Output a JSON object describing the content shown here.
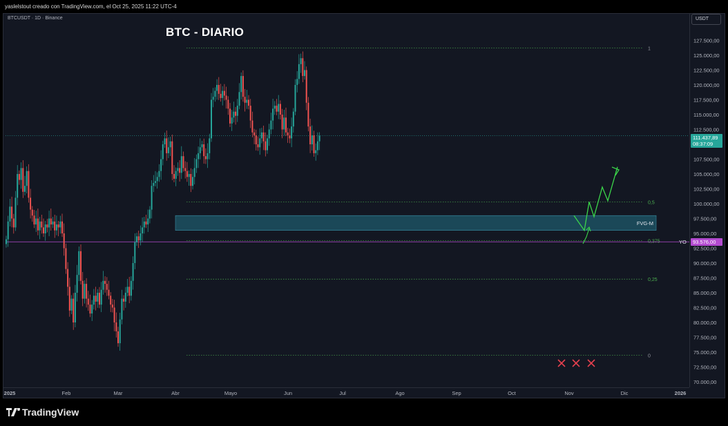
{
  "header": {
    "attribution": "yaslelstout creado con TradingView.com, el Oct 25, 2025 11:22 UTC-4"
  },
  "symbol_line": "BTCUSDT · 1D · Binance",
  "title": "BTC - DIARIO",
  "currency_button": "USDT",
  "footer": {
    "logo_text": "TradingView"
  },
  "colors": {
    "background": "#131722",
    "up": "#26a69a",
    "down": "#ef5350",
    "fvg_zone": "#1f5a6b",
    "yo_line": "#b44bd0",
    "projection": "#3bd64a",
    "fib": "#4caf50",
    "cross": "#e5404f"
  },
  "chart_data": {
    "type": "candlestick",
    "title": "BTC - DIARIO",
    "symbol": "BTCUSDT · 1D · Binance",
    "ylim": [
      70000,
      128000
    ],
    "y_ticks": [
      "127.500,00",
      "125.000,00",
      "122.500,00",
      "120.000,00",
      "117.500,00",
      "115.000,00",
      "112.500,00",
      "107.500,00",
      "105.000,00",
      "102.500,00",
      "100.000,00",
      "97.500,00",
      "95.000,00",
      "92.500,00",
      "90.000,00",
      "87.500,00",
      "85.000,00",
      "82.500,00",
      "80.000,00",
      "77.500,00",
      "75.000,00",
      "72.500,00",
      "70.000,00"
    ],
    "x_ticks": [
      "2025",
      "Feb",
      "Mar",
      "Abr",
      "Mayo",
      "Jun",
      "Jul",
      "Ago",
      "Sep",
      "Oct",
      "Nov",
      "Dic",
      "2026"
    ],
    "grid": false,
    "series": [
      {
        "values": [
          94000,
          97000,
          99500,
          97500,
          96000,
          101000,
          105000,
          104000,
          106000,
          102000,
          103000,
          105500,
          101000,
          99000,
          98000,
          96500,
          97500,
          95500,
          97000,
          96000,
          95000,
          96500,
          96000,
          97500,
          96500,
          97000,
          95500,
          96500,
          96000,
          97000,
          95000,
          92500,
          89000,
          86000,
          82000,
          84000,
          80000,
          85000,
          88000,
          92000,
          87000,
          84000,
          86500,
          84000,
          83000,
          81500,
          83000,
          84500,
          83500,
          85000,
          83000,
          85500,
          87000,
          86500,
          85500,
          84500,
          83000,
          82500,
          80000,
          78500,
          76500,
          80500,
          84000,
          83500,
          85000,
          86000,
          84500,
          87000,
          90000,
          93500,
          94500,
          93800,
          95000,
          96000,
          97000,
          96500,
          97500,
          99000,
          103000,
          103500,
          103800,
          104500,
          105500,
          107500,
          110000,
          111000,
          108500,
          109500,
          110500,
          105000,
          104200,
          105500,
          106000,
          105200,
          108000,
          106000,
          105500,
          104500,
          105000,
          103000,
          104500,
          106000,
          107500,
          108500,
          109500,
          110000,
          108000,
          107500,
          108500,
          111000,
          117500,
          118000,
          119000,
          120000,
          118500,
          117800,
          119000,
          118200,
          117500,
          116000,
          113500,
          114500,
          115500,
          114800,
          116500,
          118800,
          121500,
          118000,
          117000,
          117500,
          116500,
          114000,
          112000,
          111500,
          110000,
          109500,
          111000,
          112000,
          110500,
          109000,
          111000,
          112500,
          114000,
          116000,
          116500,
          115500,
          116800,
          115000,
          112500,
          114500,
          112000,
          111500,
          111000,
          113000,
          115500,
          120000,
          121000,
          123500,
          124500,
          121500,
          122500,
          117000,
          113000,
          110000,
          111500,
          108500,
          109000,
          110500,
          111437
        ]
      }
    ],
    "fib_levels": [
      {
        "label": "1",
        "price": 126200
      },
      {
        "label": "0,5",
        "price": 100300
      },
      {
        "label": "0,375",
        "price": 93800
      },
      {
        "label": "0,25",
        "price": 87300
      },
      {
        "label": "0",
        "price": 74500
      }
    ],
    "zone": {
      "label": "FVG-M",
      "from": 95500,
      "to": 98000
    },
    "horizontal_line": {
      "label": "YO",
      "price": 93576
    },
    "last_price": {
      "price": "111.437,89",
      "countdown": "08:37:09"
    },
    "marker_price": "93.576,00",
    "projection_path": [
      [
        101000,
        98000
      ],
      [
        96500,
        100500
      ],
      [
        98500,
        103300
      ],
      [
        101000,
        106000
      ]
    ],
    "projection_small": [
      [
        93000,
        95500
      ],
      [
        96000,
        97500
      ],
      [
        97500,
        95000
      ]
    ],
    "crosses": 3
  }
}
